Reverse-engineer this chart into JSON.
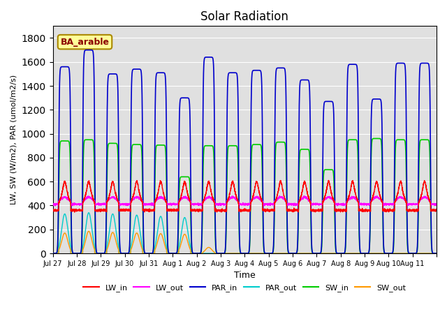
{
  "title": "Solar Radiation",
  "xlabel": "Time",
  "ylabel": "LW, SW (W/m2), PAR (umol/m2/s)",
  "annotation": "BA_arable",
  "ylim": [
    0,
    1900
  ],
  "yticks": [
    0,
    200,
    400,
    600,
    800,
    1000,
    1200,
    1400,
    1600,
    1800
  ],
  "line_colors": {
    "LW_in": "#ff0000",
    "LW_out": "#ff00ff",
    "PAR_in": "#0000cc",
    "PAR_out": "#00cccc",
    "SW_in": "#00cc00",
    "SW_out": "#ff9900"
  },
  "line_widths": {
    "LW_in": 1.0,
    "LW_out": 1.0,
    "PAR_in": 1.2,
    "PAR_out": 1.0,
    "SW_in": 1.2,
    "SW_out": 1.0
  },
  "bg_color": "#e0e0e0",
  "fig_bg": "#ffffff",
  "n_days": 16,
  "xtick_labels": [
    "Jul 27",
    "Jul 28",
    "Jul 29",
    "Jul 30",
    "Jul 31",
    "Aug 1",
    "Aug 2",
    "Aug 3",
    "Aug 4",
    "Aug 5",
    "Aug 6",
    "Aug 7",
    "Aug 8",
    "Aug 9",
    "Aug 10",
    "Aug 11"
  ],
  "PAR_peaks": [
    1560,
    1700,
    1500,
    1540,
    1510,
    1300,
    1640,
    1510,
    1530,
    1550,
    1450,
    1270,
    1580,
    1290,
    1590,
    1590
  ],
  "SW_peaks": [
    940,
    950,
    920,
    910,
    905,
    640,
    900,
    900,
    910,
    930,
    870,
    700,
    950,
    960,
    950,
    950
  ],
  "SW_out_peaks": [
    170,
    185,
    175,
    170,
    165,
    160,
    50,
    0,
    0,
    0,
    0,
    0,
    0,
    0,
    0,
    0
  ],
  "PAR_out_peaks": [
    330,
    340,
    330,
    320,
    310,
    300,
    0,
    0,
    0,
    0,
    0,
    0,
    0,
    0,
    0,
    0
  ],
  "LW_in_night": 360,
  "LW_in_day_add": 160,
  "LW_out_night": 410,
  "LW_out_day_add": 60,
  "day_start": 0.25,
  "day_end": 0.75
}
